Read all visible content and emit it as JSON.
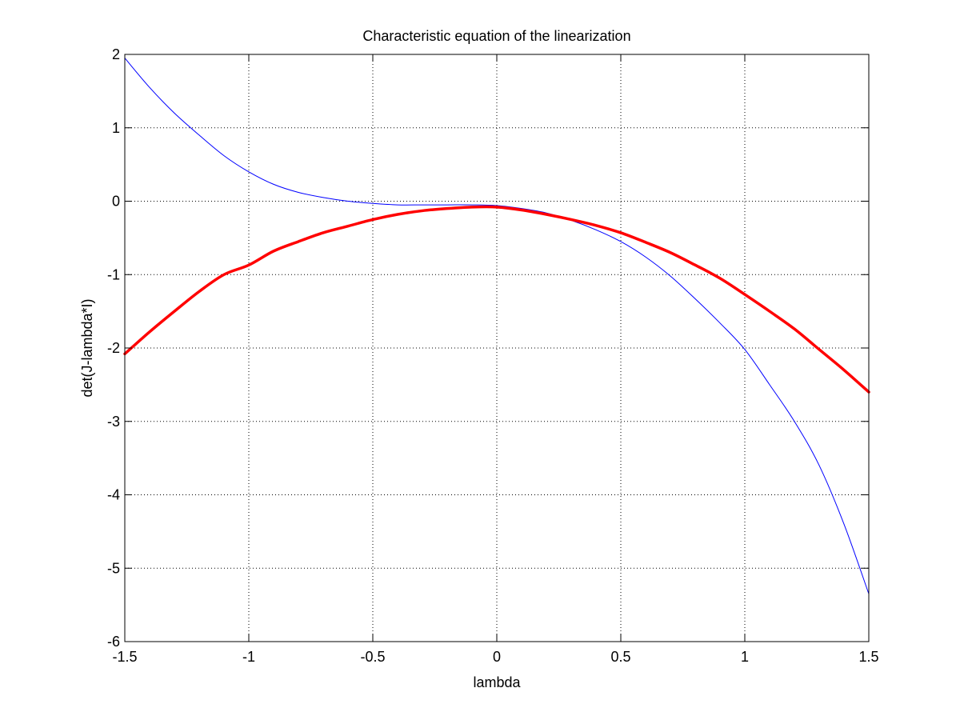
{
  "chart_data": {
    "type": "line",
    "title": "Characteristic equation of the linearization",
    "xlabel": "lambda",
    "ylabel": "det(J-lambda*I)",
    "xlim": [
      -1.5,
      1.5
    ],
    "ylim": [
      -6,
      2
    ],
    "xticks": [
      -1.5,
      -1,
      -0.5,
      0,
      0.5,
      1,
      1.5
    ],
    "xtick_labels": [
      "-1.5",
      "-1",
      "-0.5",
      "0",
      "0.5",
      "1",
      "1.5"
    ],
    "yticks": [
      -6,
      -5,
      -4,
      -3,
      -2,
      -1,
      0,
      1,
      2
    ],
    "ytick_labels": [
      "-6",
      "-5",
      "-4",
      "-3",
      "-2",
      "-1",
      "0",
      "1",
      "2"
    ],
    "grid": true,
    "series": [
      {
        "color": "#0000ff",
        "style": "thin",
        "x": [
          -1.5,
          -1.4,
          -1.3,
          -1.2,
          -1.1,
          -1.0,
          -0.9,
          -0.8,
          -0.7,
          -0.6,
          -0.5,
          -0.4,
          -0.3,
          -0.2,
          -0.1,
          0.0,
          0.1,
          0.2,
          0.3,
          0.4,
          0.5,
          0.6,
          0.7,
          0.8,
          0.9,
          1.0,
          1.1,
          1.2,
          1.3,
          1.4,
          1.5
        ],
        "y": [
          1.95,
          1.55,
          1.2,
          0.9,
          0.62,
          0.4,
          0.23,
          0.12,
          0.05,
          0.0,
          -0.03,
          -0.05,
          -0.05,
          -0.05,
          -0.05,
          -0.06,
          -0.1,
          -0.16,
          -0.26,
          -0.39,
          -0.55,
          -0.76,
          -1.02,
          -1.33,
          -1.66,
          -2.02,
          -2.5,
          -3.0,
          -3.6,
          -4.4,
          -5.35
        ]
      },
      {
        "color": "#ff0000",
        "style": "thick",
        "x": [
          -1.5,
          -1.4,
          -1.3,
          -1.2,
          -1.1,
          -1.0,
          -0.9,
          -0.8,
          -0.7,
          -0.6,
          -0.5,
          -0.4,
          -0.3,
          -0.2,
          -0.1,
          0.0,
          0.1,
          0.2,
          0.3,
          0.4,
          0.5,
          0.6,
          0.7,
          0.8,
          0.9,
          1.0,
          1.1,
          1.2,
          1.3,
          1.4,
          1.5
        ],
        "y": [
          -2.08,
          -1.78,
          -1.5,
          -1.23,
          -1.0,
          -0.87,
          -0.68,
          -0.55,
          -0.43,
          -0.34,
          -0.25,
          -0.18,
          -0.13,
          -0.1,
          -0.08,
          -0.08,
          -0.12,
          -0.18,
          -0.25,
          -0.33,
          -0.43,
          -0.56,
          -0.7,
          -0.87,
          -1.05,
          -1.27,
          -1.5,
          -1.74,
          -2.02,
          -2.3,
          -2.6
        ]
      }
    ]
  }
}
